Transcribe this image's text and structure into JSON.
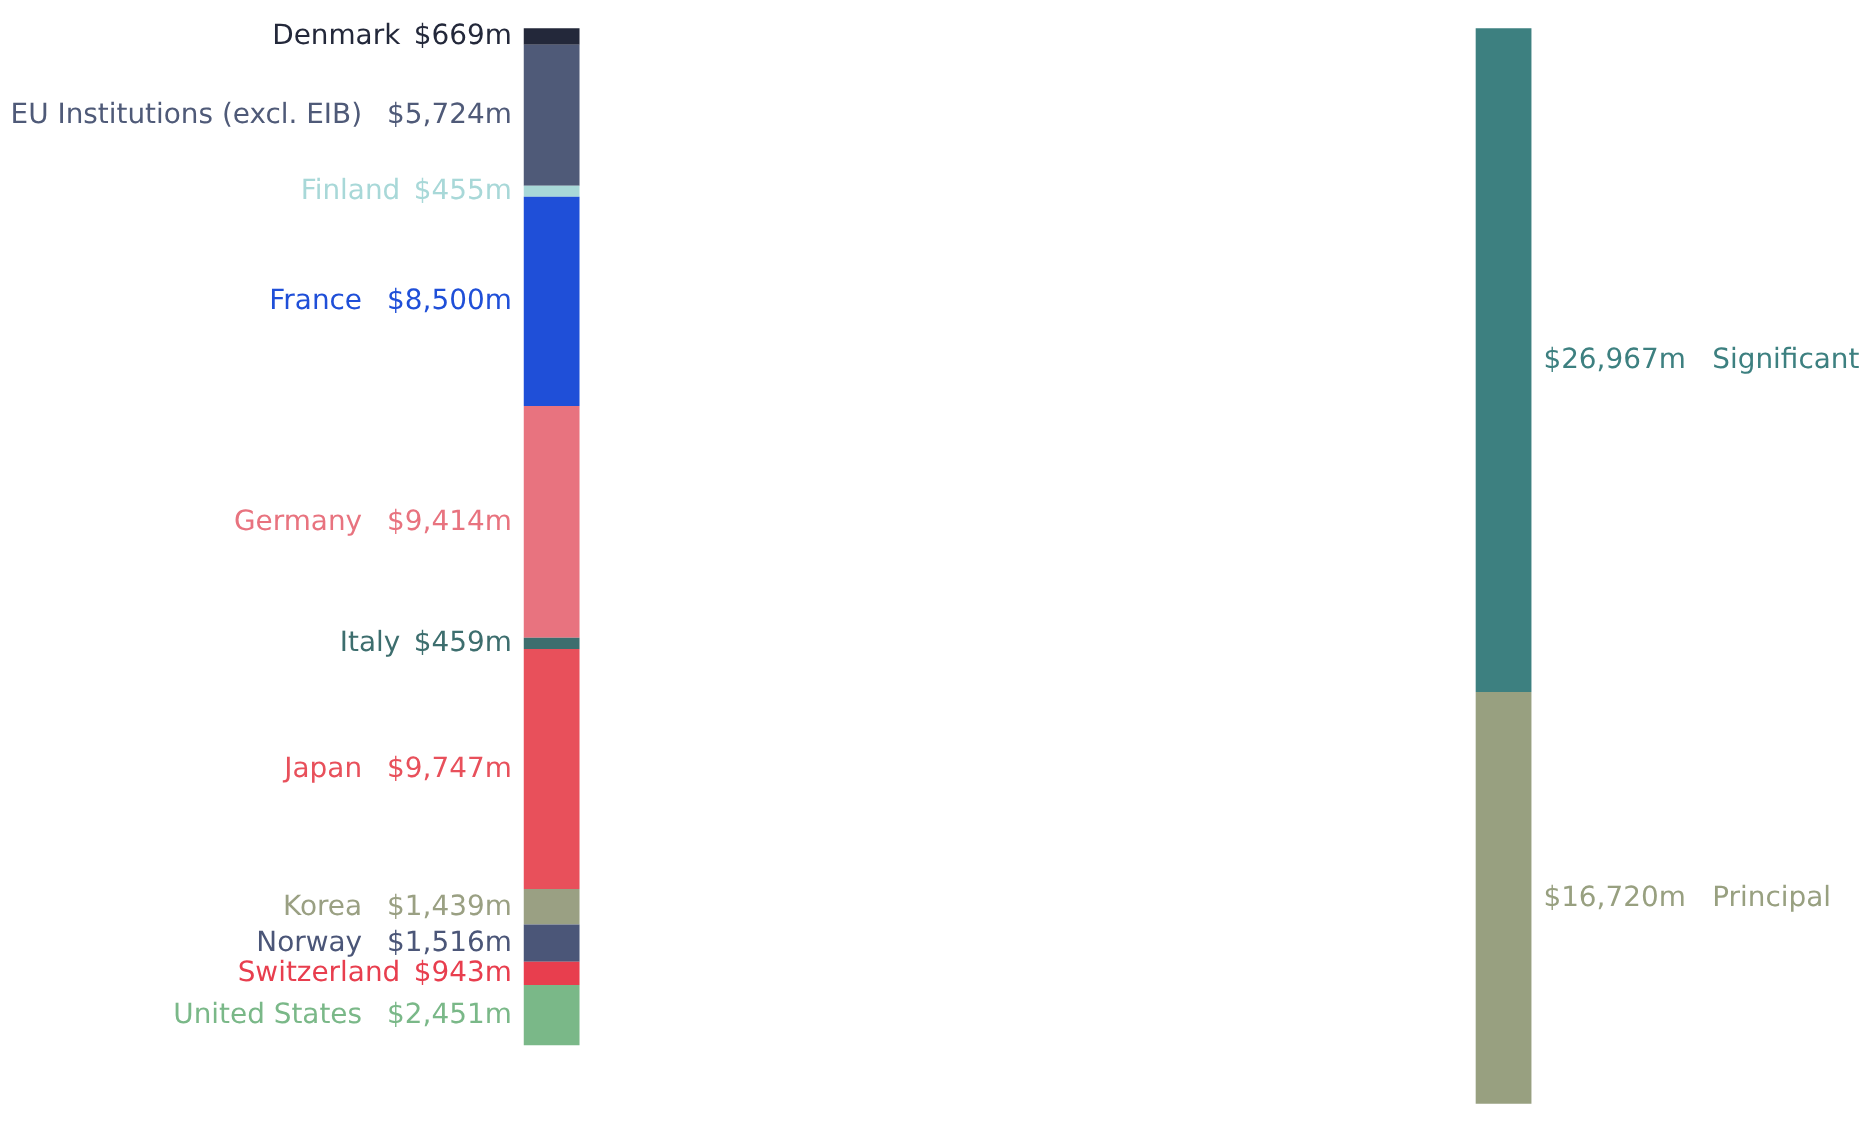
{
  "chart_data": [
    {
      "type": "other",
      "categories": [
        "Denmark",
        "EU Institutions (excl. EIB)",
        "Finland",
        "France",
        "Germany",
        "Italy",
        "Japan",
        "Korea",
        "Norway",
        "Switzerland",
        "United States"
      ],
      "values": [
        669,
        5724,
        455,
        8500,
        9414,
        459,
        9747,
        1439,
        1516,
        943,
        2451
      ],
      "value_labels": [
        "$669m",
        "$5,724m",
        "$455m",
        "$8,500m",
        "$9,414m",
        "$459m",
        "$9,747m",
        "$1,439m",
        "$1,516m",
        "$943m",
        "$2,451m"
      ],
      "colors": [
        "#23283a",
        "#4f5a78",
        "#a8d8d8",
        "#1f4fd8",
        "#e8737f",
        "#3d6e6e",
        "#e8505b",
        "#9aa083",
        "#4b5678",
        "#e83e4e",
        "#7ab888"
      ]
    },
    {
      "type": "other",
      "categories": [
        "Significant",
        "Principal"
      ],
      "values": [
        26967,
        16720
      ],
      "value_labels": [
        "$26,967m",
        "$16,720m"
      ],
      "colors": [
        "#3d8080",
        "#98a080"
      ]
    }
  ]
}
